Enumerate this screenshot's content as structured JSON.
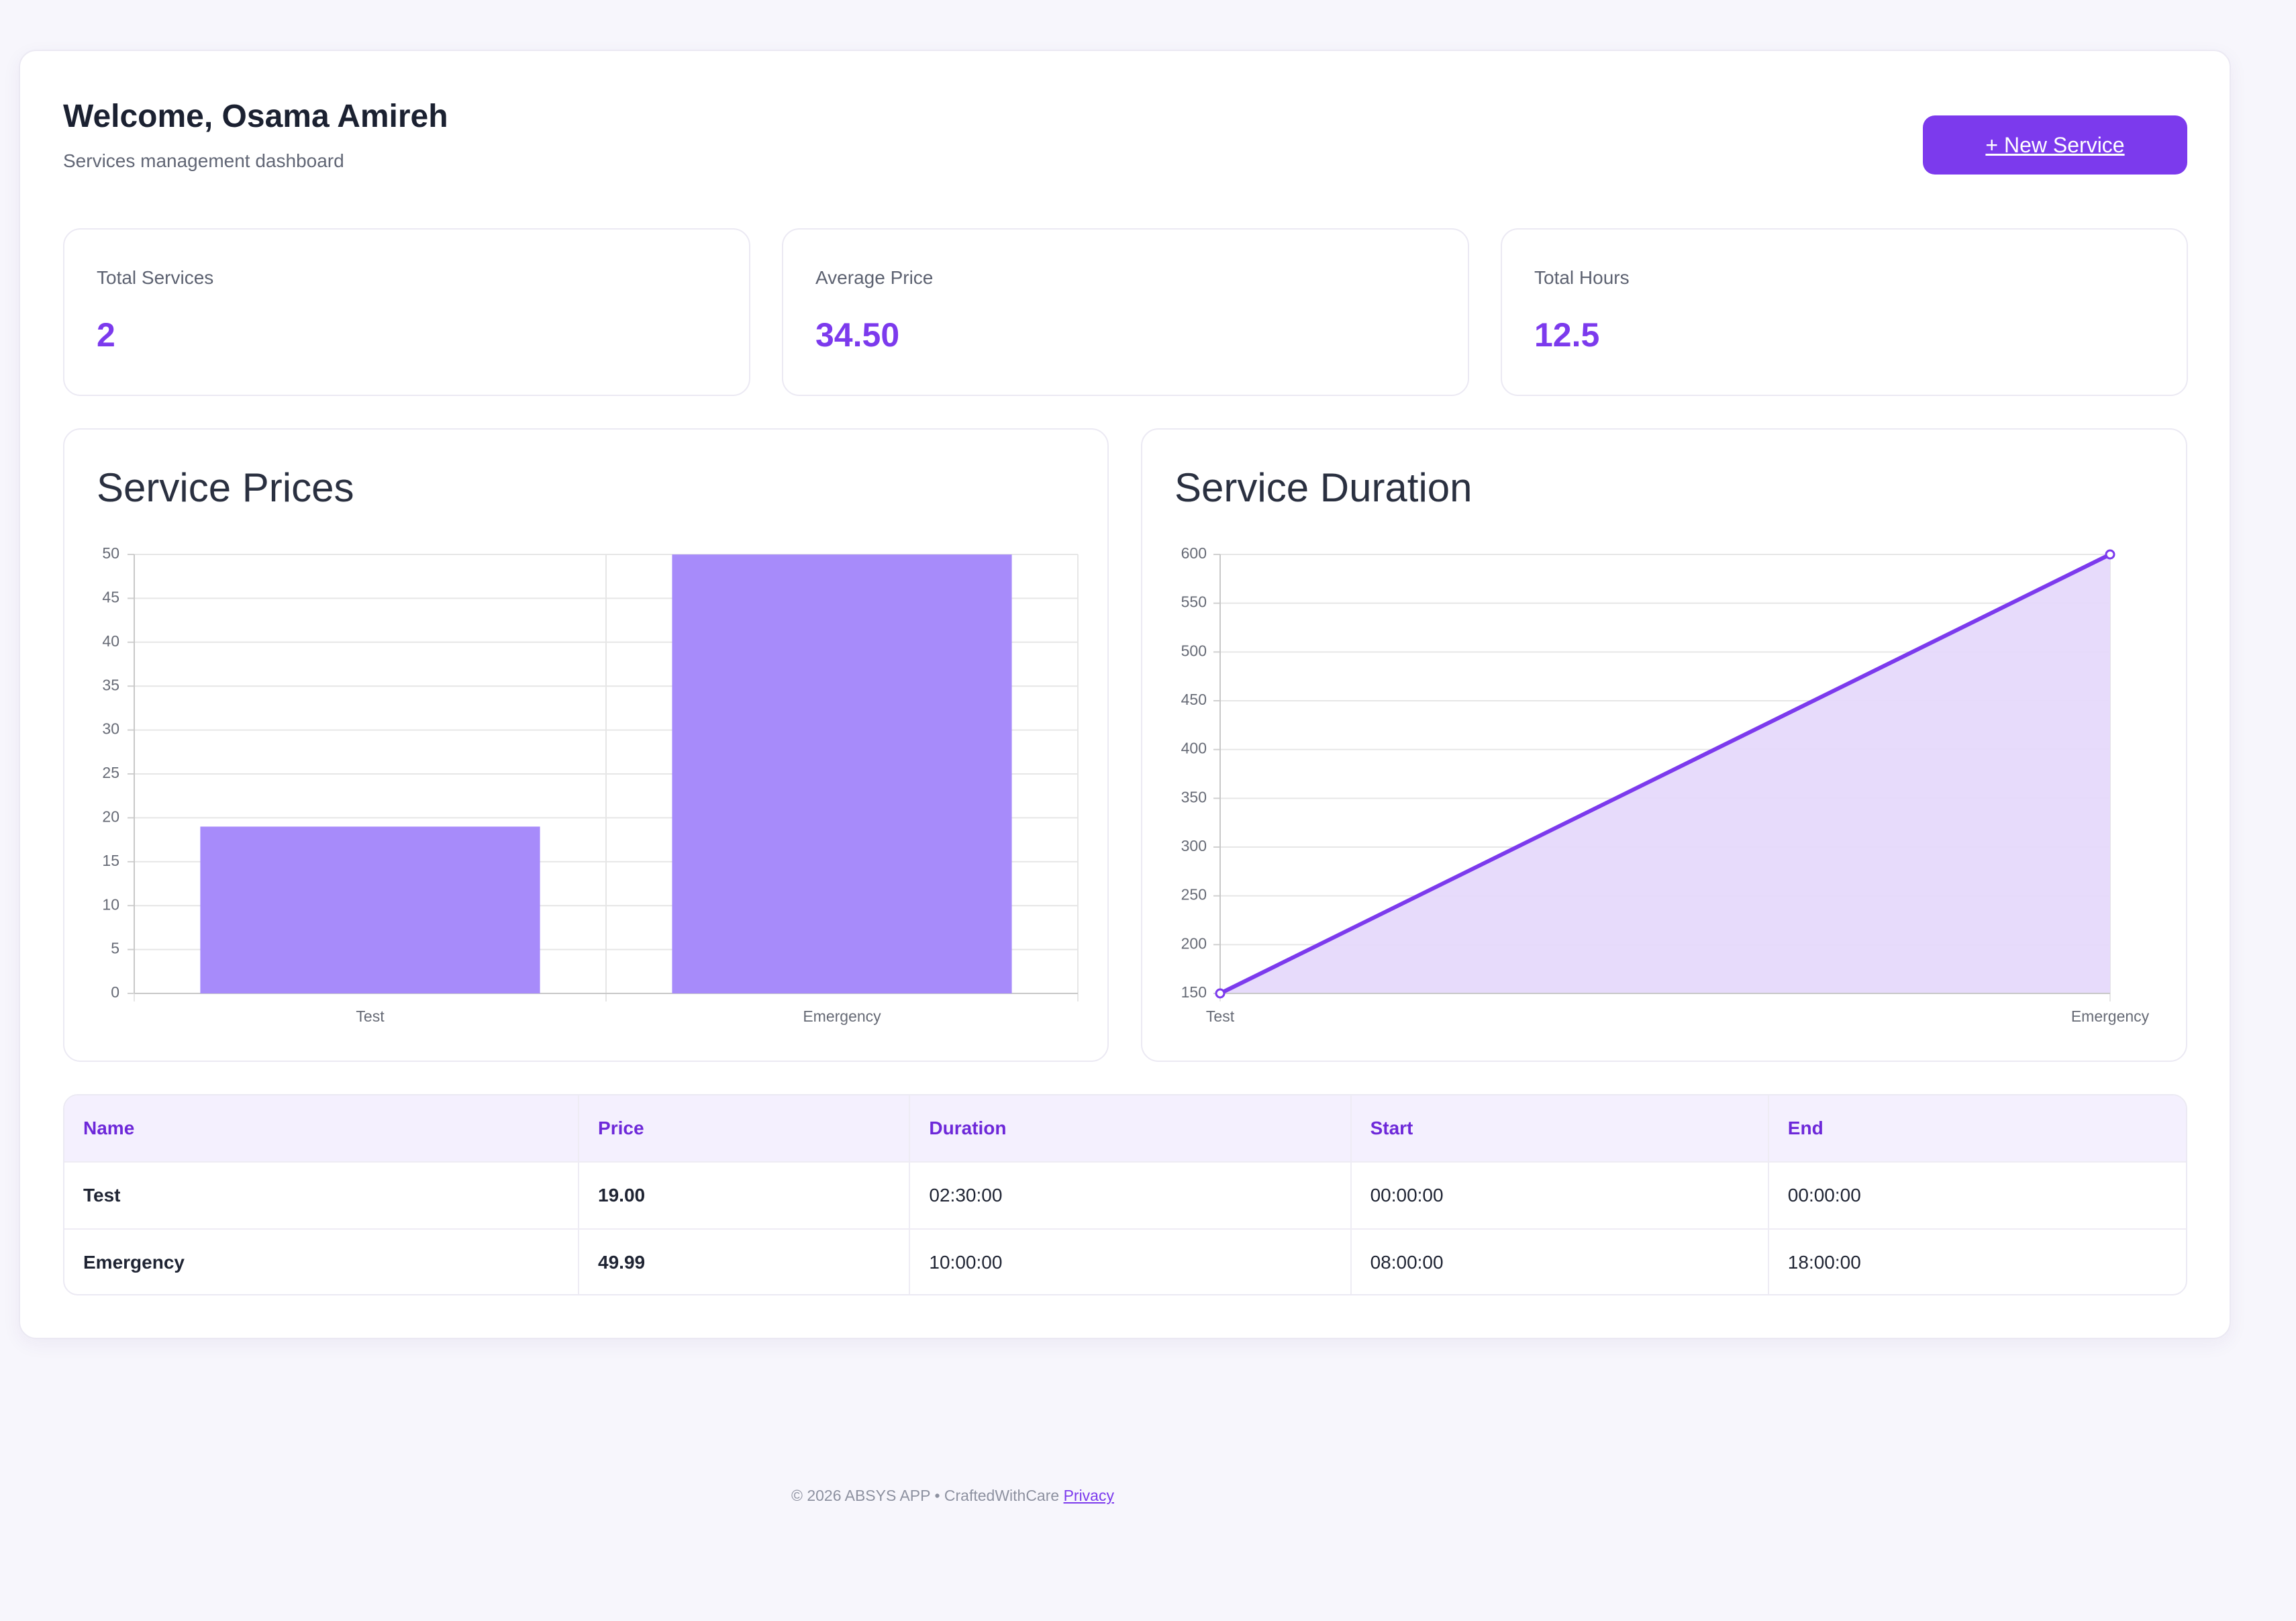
{
  "header": {
    "title": "Welcome, Osama Amireh",
    "subtitle": "Services management dashboard",
    "new_service_label": "+ New Service"
  },
  "stats": [
    {
      "label": "Total Services",
      "value": "2"
    },
    {
      "label": "Average Price",
      "value": "34.50"
    },
    {
      "label": "Total Hours",
      "value": "12.5"
    }
  ],
  "chart_data": [
    {
      "type": "bar",
      "title": "Service Prices",
      "categories": [
        "Test",
        "Emergency"
      ],
      "values": [
        19,
        49.99
      ],
      "ylim": [
        0,
        50
      ],
      "yticks": [
        0,
        5,
        10,
        15,
        20,
        25,
        30,
        35,
        40,
        45,
        50
      ],
      "xlabel": "",
      "ylabel": "",
      "grid": true,
      "color": "#a78bfa"
    },
    {
      "type": "area",
      "title": "Service Duration",
      "categories": [
        "Test",
        "Emergency"
      ],
      "values": [
        150,
        600
      ],
      "ylim": [
        150,
        600
      ],
      "yticks": [
        150,
        200,
        250,
        300,
        350,
        400,
        450,
        500,
        550,
        600
      ],
      "xlabel": "",
      "ylabel": "",
      "grid": true,
      "line_color": "#7c3aed",
      "fill_color": "#e6d9fb"
    }
  ],
  "table": {
    "columns": [
      "Name",
      "Price",
      "Duration",
      "Start",
      "End"
    ],
    "rows": [
      [
        "Test",
        "19.00",
        "02:30:00",
        "00:00:00",
        "00:00:00"
      ],
      [
        "Emergency",
        "49.99",
        "10:00:00",
        "08:00:00",
        "18:00:00"
      ]
    ]
  },
  "footer": {
    "text": "© 2026 ABSYS APP • CraftedWithCare",
    "privacy_label": "Privacy"
  },
  "colors": {
    "accent": "#7c3aed",
    "bar": "#a78bfa",
    "area_fill": "#e6d9fb"
  }
}
